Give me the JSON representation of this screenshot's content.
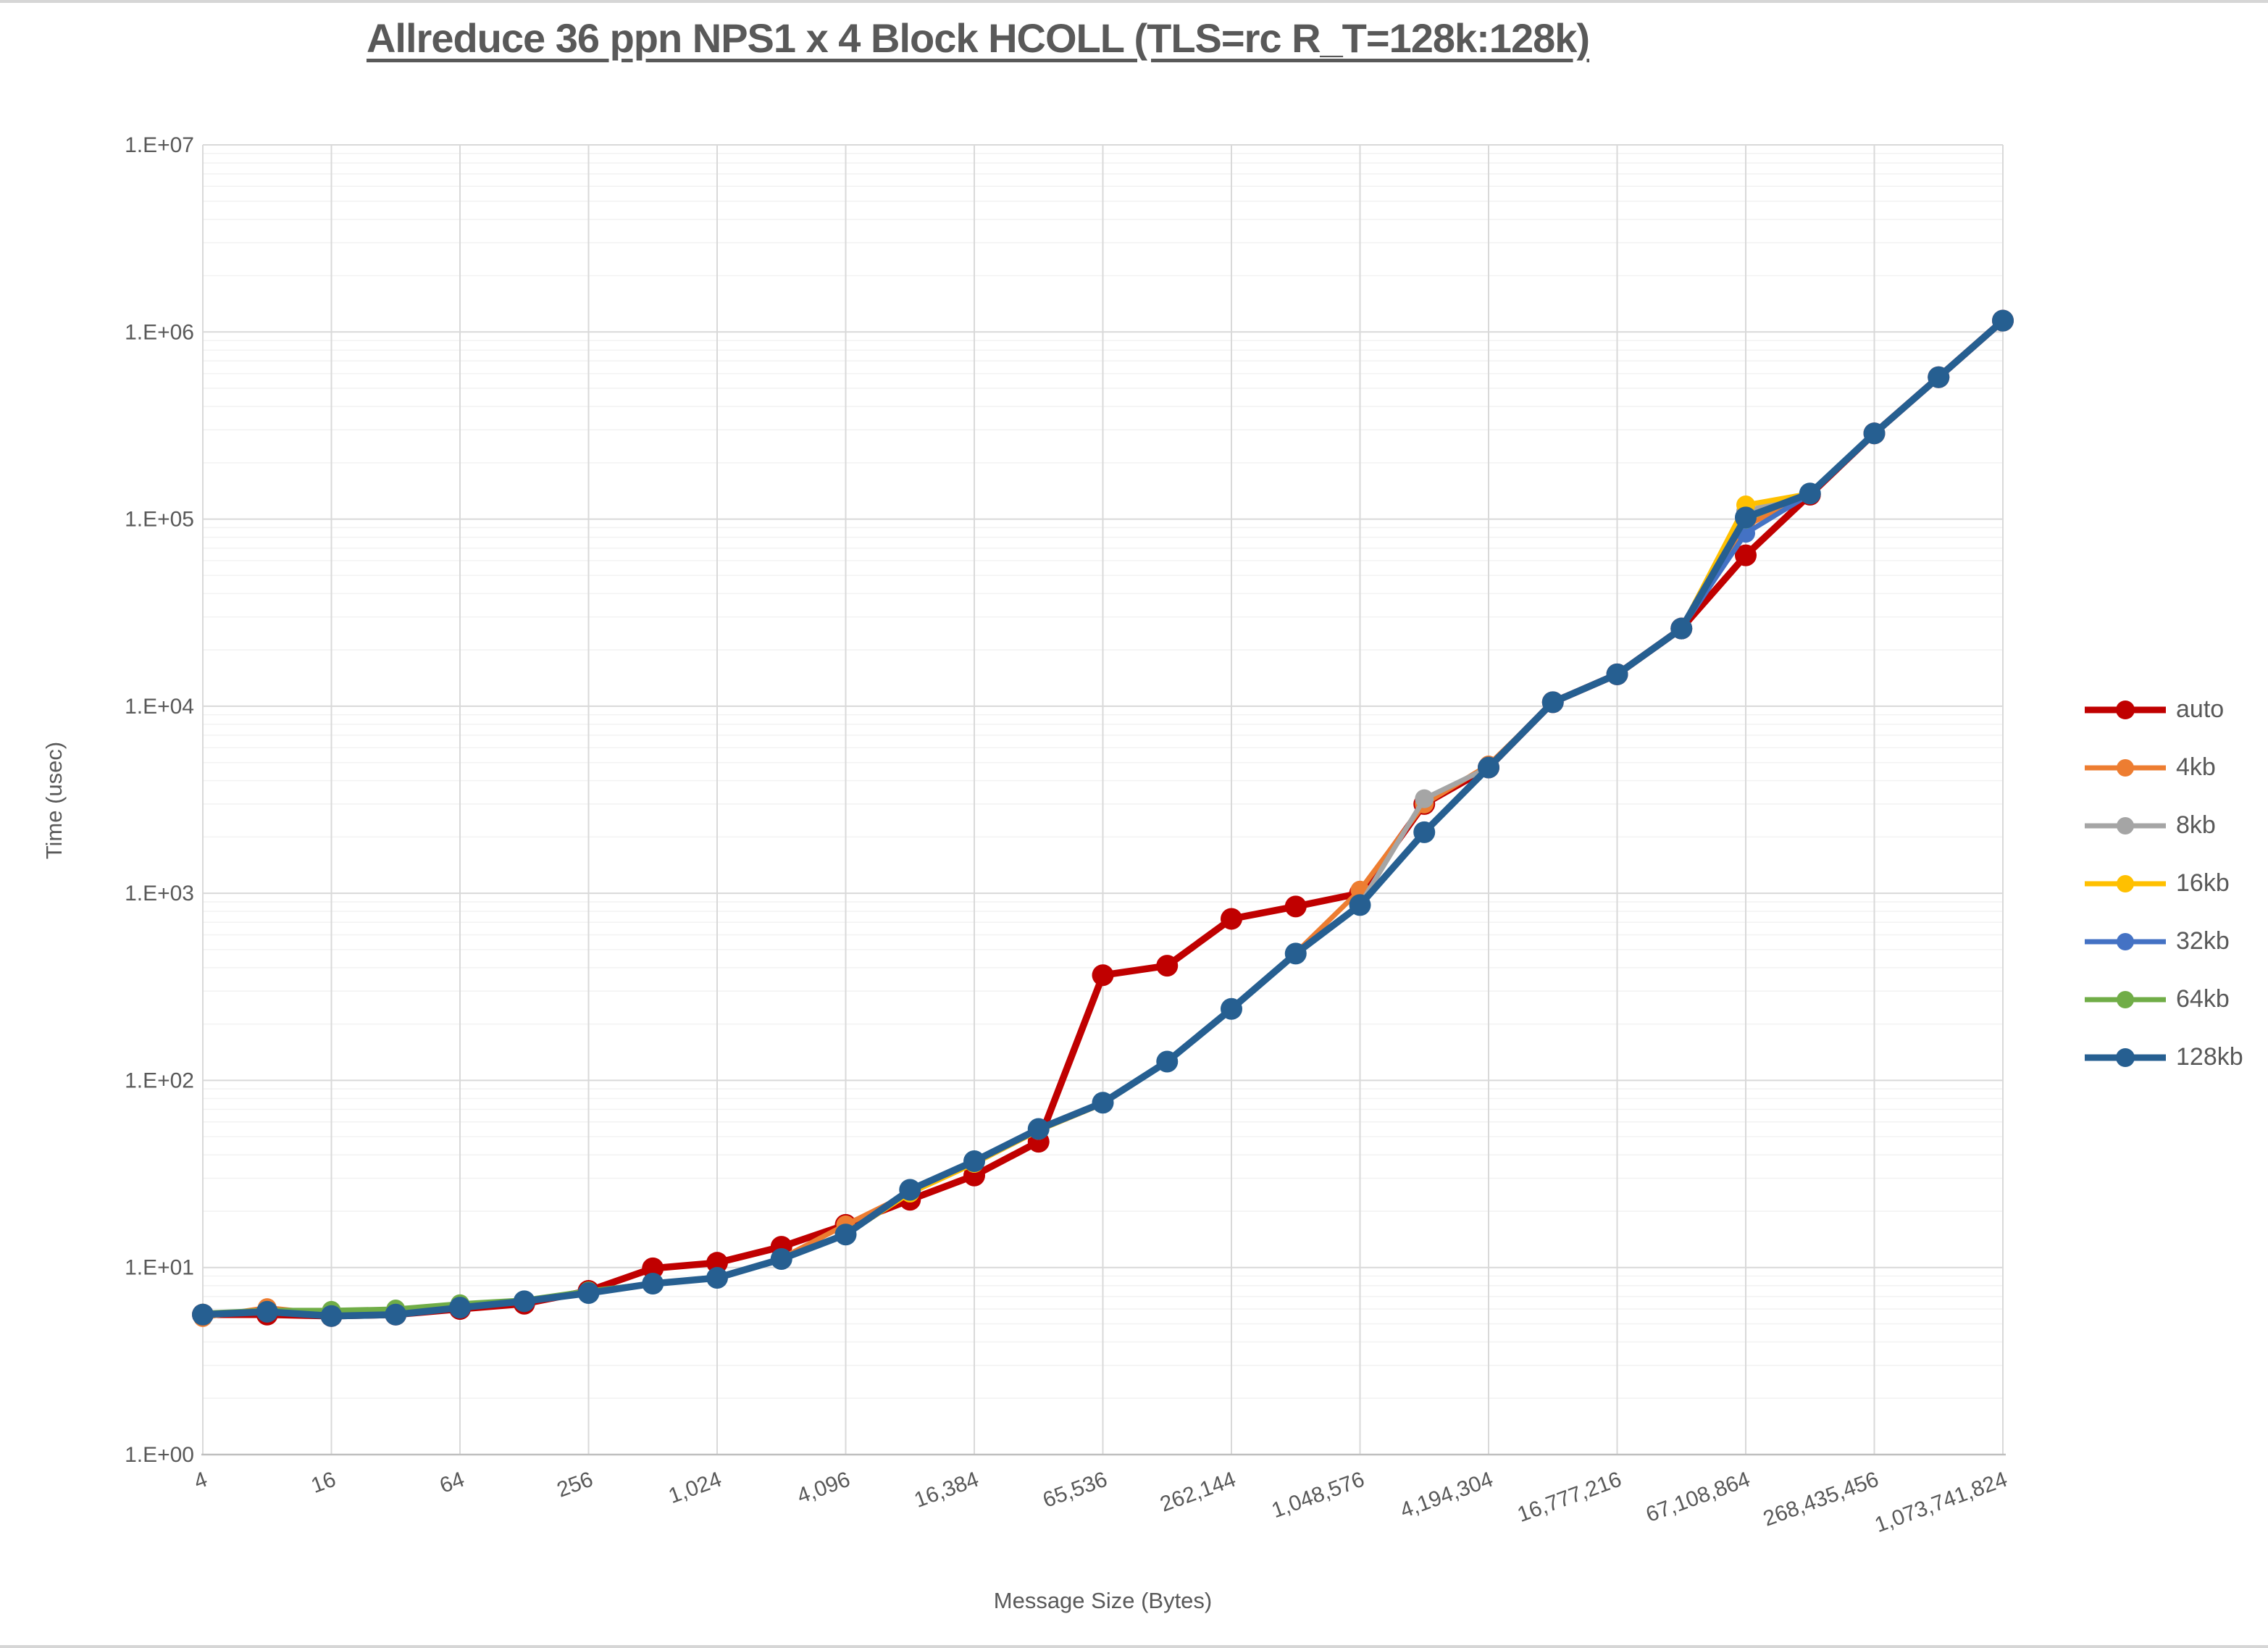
{
  "chart_data": {
    "type": "line",
    "title": "Allreduce 36 ppn NPS1 x 4 Block HCOLL (TLS=rc R_T=128k:128k)",
    "xlabel": "Message Size (Bytes)",
    "ylabel": "Time (usec)",
    "x_scale": "log2-categories",
    "y_scale": "log10",
    "ylim": [
      1,
      10000000
    ],
    "grid": "major-xy + minor-y",
    "legend_position": "right",
    "y_tick_labels": [
      "1.E+00",
      "1.E+01",
      "1.E+02",
      "1.E+03",
      "1.E+04",
      "1.E+05",
      "1.E+06",
      "1.E+07"
    ],
    "x_tick_labels": [
      "4",
      "16",
      "64",
      "256",
      "1,024",
      "4,096",
      "16,384",
      "65,536",
      "262,144",
      "1,048,576",
      "4,194,304",
      "16,777,216",
      "67,108,864",
      "268,435,456",
      "1,073,741,824"
    ],
    "categories": [
      4,
      8,
      16,
      32,
      64,
      128,
      256,
      512,
      1024,
      2048,
      4096,
      8192,
      16384,
      32768,
      65536,
      131072,
      262144,
      524288,
      1048576,
      2097152,
      4194304,
      8388608,
      16777216,
      33554432,
      67108864,
      134217728,
      268435456,
      536870912,
      1073741824
    ],
    "series": [
      {
        "name": "auto",
        "color": "#C00000",
        "values": [
          5.6,
          5.6,
          5.5,
          5.6,
          6.0,
          6.4,
          7.5,
          9.9,
          10.6,
          12.9,
          16.9,
          23,
          31,
          47,
          365,
          410,
          730,
          850,
          1000,
          3000,
          4700,
          10500,
          14800,
          26000,
          64000,
          135000,
          287000,
          573000,
          1150000
        ]
      },
      {
        "name": "4kb",
        "color": "#ED7D31",
        "values": [
          5.4,
          6.1,
          5.6,
          5.7,
          6.1,
          6.6,
          7.4,
          8.2,
          8.9,
          11.2,
          16.9,
          25,
          36,
          54,
          76,
          126,
          242,
          480,
          1040,
          3000,
          4850,
          10500,
          14800,
          26000,
          92000,
          137000,
          287000,
          573000,
          1150000
        ]
      },
      {
        "name": "8kb",
        "color": "#A5A5A5",
        "values": [
          5.6,
          5.9,
          5.6,
          5.7,
          6.1,
          6.6,
          7.3,
          8.2,
          8.8,
          11.1,
          15.2,
          26,
          36,
          54,
          75,
          125,
          240,
          475,
          870,
          3200,
          4700,
          10500,
          14800,
          26000,
          110000,
          137000,
          287000,
          573000,
          1150000
        ]
      },
      {
        "name": "16kb",
        "color": "#FFC000",
        "values": [
          5.6,
          5.9,
          5.7,
          5.8,
          6.2,
          6.6,
          7.4,
          8.2,
          8.8,
          11.0,
          15.0,
          25,
          36,
          54,
          75,
          125,
          240,
          475,
          865,
          2120,
          4700,
          10500,
          14800,
          26000,
          119000,
          137000,
          287000,
          573000,
          1150000
        ]
      },
      {
        "name": "32kb",
        "color": "#4472C4",
        "values": [
          5.6,
          5.9,
          5.6,
          5.7,
          6.1,
          6.6,
          7.3,
          8.2,
          8.8,
          11.0,
          15.0,
          26,
          37,
          55,
          76,
          126,
          241,
          476,
          865,
          2120,
          4700,
          10500,
          14800,
          26000,
          84000,
          136000,
          287000,
          573000,
          1150000
        ]
      },
      {
        "name": "64kb",
        "color": "#70AD47",
        "values": [
          5.7,
          5.9,
          5.9,
          6.0,
          6.4,
          6.7,
          7.5,
          8.2,
          8.9,
          11.0,
          15.2,
          26,
          37,
          55,
          76,
          126,
          241,
          476,
          865,
          2120,
          4700,
          10500,
          14800,
          26000,
          100000,
          137000,
          287000,
          573000,
          1150000
        ]
      },
      {
        "name": "128kb",
        "color": "#265F91",
        "values": [
          5.6,
          5.8,
          5.5,
          5.6,
          6.1,
          6.6,
          7.3,
          8.2,
          8.8,
          11.1,
          15.0,
          26,
          37,
          55,
          76,
          126,
          241,
          476,
          865,
          2120,
          4700,
          10500,
          14800,
          26000,
          102000,
          137000,
          287000,
          573000,
          1150000
        ]
      }
    ],
    "colors": {
      "major_grid": "#D9D9D9",
      "minor_grid": "#F2F2F2",
      "axis_line": "#BFBFBF",
      "text": "#595959"
    }
  }
}
